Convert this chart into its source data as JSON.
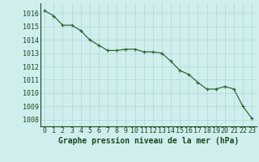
{
  "x": [
    0,
    1,
    2,
    3,
    4,
    5,
    6,
    7,
    8,
    9,
    10,
    11,
    12,
    13,
    14,
    15,
    16,
    17,
    18,
    19,
    20,
    21,
    22,
    23
  ],
  "y": [
    1016.2,
    1015.8,
    1015.1,
    1015.1,
    1014.7,
    1014.0,
    1013.6,
    1013.2,
    1013.2,
    1013.3,
    1013.3,
    1013.1,
    1013.1,
    1013.0,
    1012.4,
    1011.7,
    1011.4,
    1010.8,
    1010.3,
    1010.3,
    1010.5,
    1010.3,
    1009.0,
    1008.1
  ],
  "line_color": "#2d6a2d",
  "marker_color": "#2d6a2d",
  "bg_color": "#d0eeee",
  "grid_color": "#b8d8d8",
  "xlabel": "Graphe pression niveau de la mer (hPa)",
  "xlabel_color": "#1a4a1a",
  "tick_color": "#1a4a1a",
  "ylim": [
    1007.5,
    1016.75
  ],
  "yticks": [
    1008,
    1009,
    1010,
    1011,
    1012,
    1013,
    1014,
    1015,
    1016
  ],
  "xticks": [
    0,
    1,
    2,
    3,
    4,
    5,
    6,
    7,
    8,
    9,
    10,
    11,
    12,
    13,
    14,
    15,
    16,
    17,
    18,
    19,
    20,
    21,
    22,
    23
  ],
  "tick_fontsize": 6.0,
  "xlabel_fontsize": 7.0
}
